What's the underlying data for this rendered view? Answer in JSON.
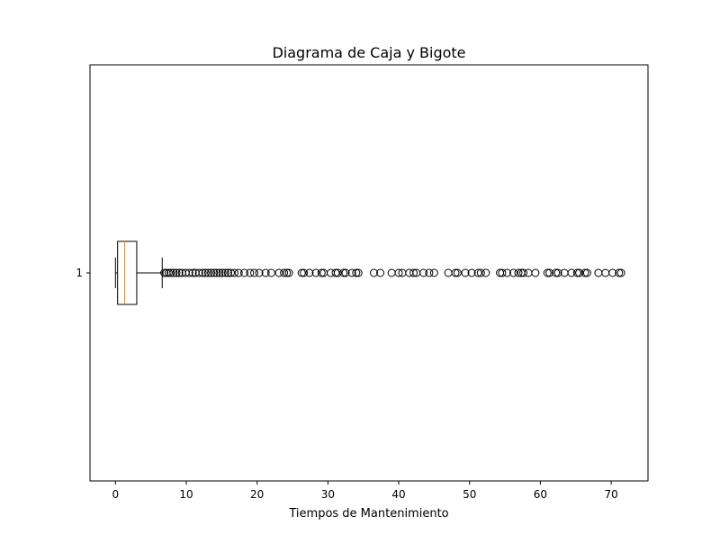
{
  "chart_data": {
    "type": "boxplot",
    "orientation": "horizontal",
    "title": "Diagrama de Caja y Bigote",
    "xlabel": "Tiempos de Mantenimiento",
    "ylabel": "",
    "xlim": [
      -3.6,
      75.2
    ],
    "x_ticks": [
      0,
      10,
      20,
      30,
      40,
      50,
      60,
      70
    ],
    "categories": [
      "1"
    ],
    "grid": false,
    "box": {
      "q1": 0.3,
      "median": 1.3,
      "q3": 3.0,
      "whisker_low": 0.0,
      "whisker_high": 6.6
    },
    "outliers": [
      6.9,
      7.2,
      7.5,
      7.8,
      8.2,
      8.6,
      9.0,
      9.4,
      9.9,
      10.4,
      10.9,
      11.3,
      11.8,
      12.3,
      12.7,
      13.1,
      13.5,
      13.9,
      14.3,
      14.7,
      15.1,
      15.5,
      15.9,
      16.3,
      16.8,
      17.4,
      18.2,
      19.0,
      19.6,
      20.3,
      21.2,
      22.0,
      23.1,
      23.8,
      24.2,
      24.5,
      26.3,
      26.6,
      27.4,
      28.3,
      29.1,
      29.4,
      30.4,
      31.1,
      31.4,
      32.2,
      32.5,
      33.4,
      34.0,
      34.3,
      36.5,
      37.4,
      39.0,
      40.0,
      40.5,
      41.5,
      42.1,
      42.5,
      43.5,
      44.3,
      45.0,
      47.0,
      48.0,
      48.3,
      49.4,
      50.3,
      51.2,
      51.6,
      52.3,
      54.3,
      54.6,
      55.3,
      56.2,
      56.9,
      57.3,
      57.6,
      58.3,
      59.3,
      61.0,
      61.3,
      62.2,
      62.5,
      63.4,
      64.4,
      65.2,
      65.5,
      66.3,
      66.6,
      68.2,
      69.2,
      70.2,
      71.1,
      71.4
    ]
  },
  "colors": {
    "box": "#000000",
    "median": "#ff7f0e",
    "outlier": "#000000",
    "background": "#ffffff"
  }
}
